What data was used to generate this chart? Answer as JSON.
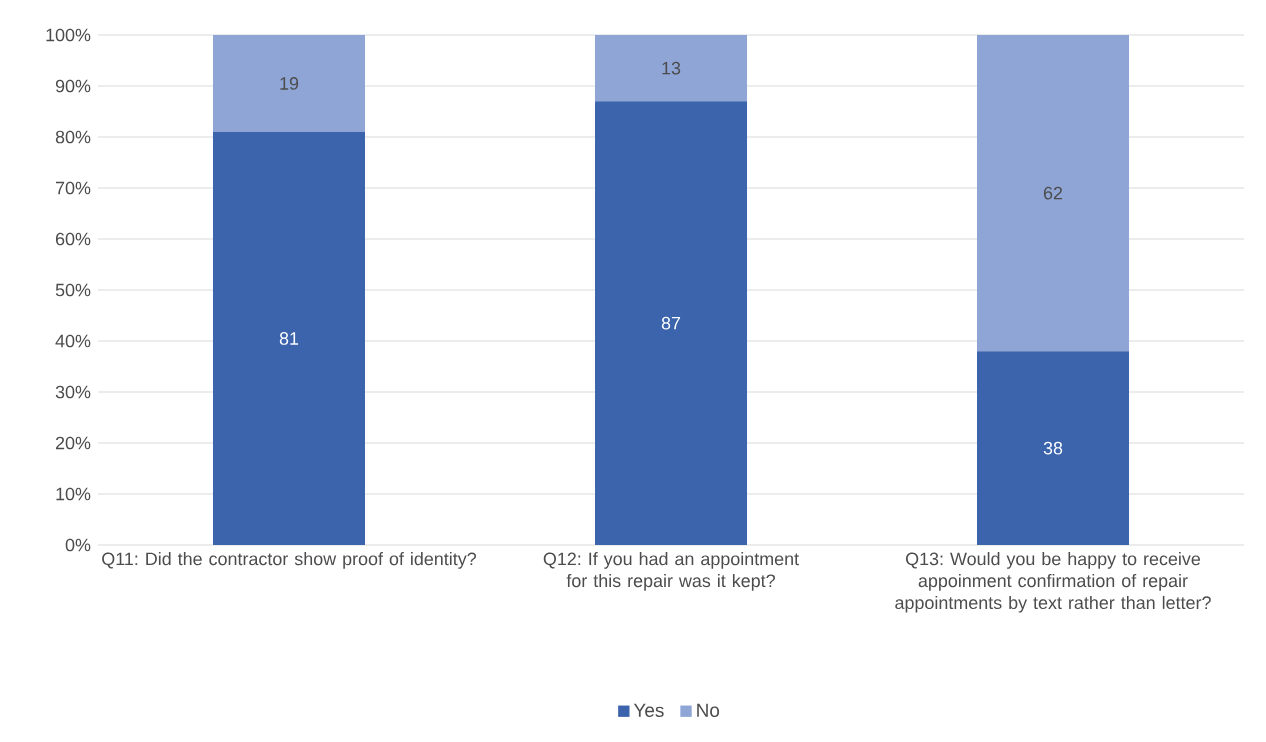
{
  "chart_data": {
    "type": "bar",
    "stacked": true,
    "categories": [
      "Q11: Did the contractor show proof of identity?",
      "Q12: If you had an appointment for this repair was it kept?",
      "Q13: Would you be happy to receive appoinment confirmation of repair appointments by text rather than letter?"
    ],
    "series": [
      {
        "name": "Yes",
        "color": "#3b64ad",
        "values": [
          81,
          87,
          38
        ]
      },
      {
        "name": "No",
        "color": "#8fa5d6",
        "values": [
          19,
          13,
          62
        ]
      }
    ],
    "ylim": [
      0,
      100
    ],
    "yticks": [
      {
        "value": 0,
        "label": "0%"
      },
      {
        "value": 10,
        "label": "10%"
      },
      {
        "value": 20,
        "label": "20%"
      },
      {
        "value": 30,
        "label": "30%"
      },
      {
        "value": 40,
        "label": "40%"
      },
      {
        "value": 50,
        "label": "50%"
      },
      {
        "value": 60,
        "label": "60%"
      },
      {
        "value": 70,
        "label": "70%"
      },
      {
        "value": 80,
        "label": "80%"
      },
      {
        "value": 90,
        "label": "90%"
      },
      {
        "value": 100,
        "label": "100%"
      }
    ],
    "grid": "y",
    "data_labels": true,
    "legend": "bottom"
  }
}
